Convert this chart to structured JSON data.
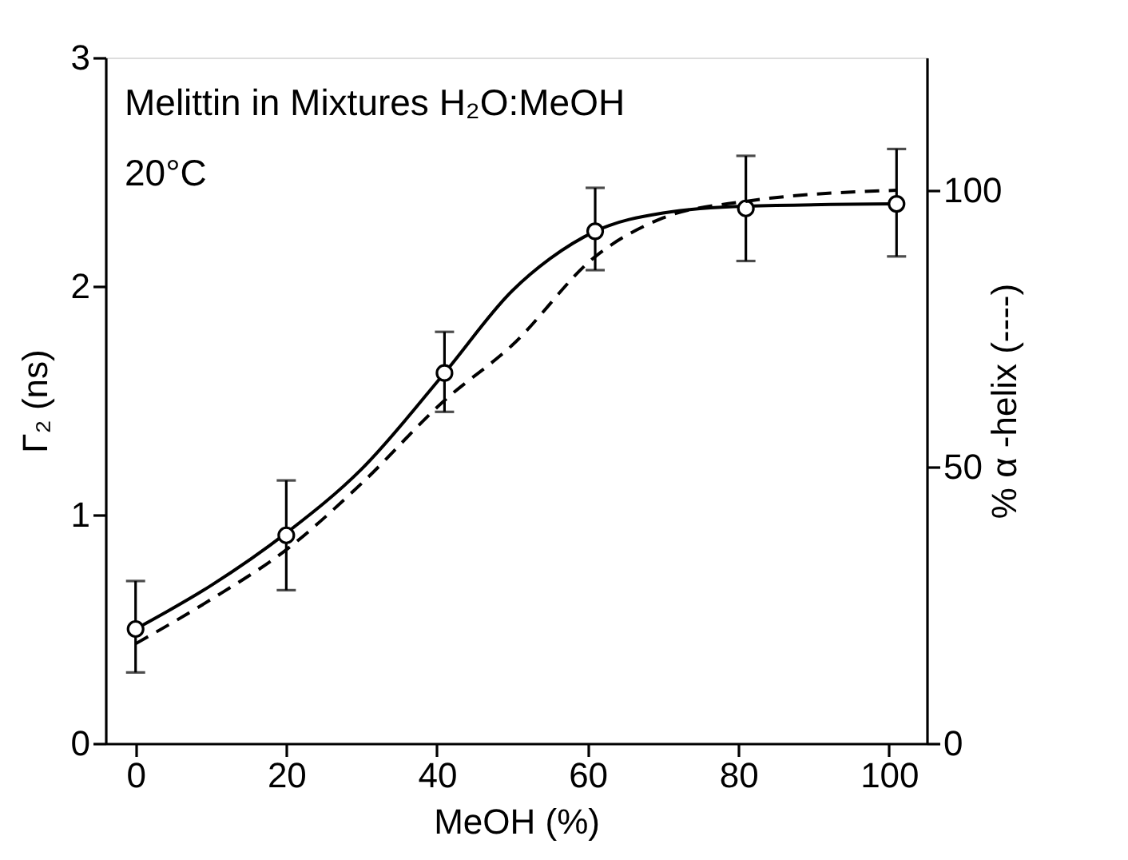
{
  "chart_data": {
    "type": "line",
    "xlabel": "MeOH (%)",
    "ylabel": "Γ₂ (ns)",
    "y2label": "% α -helix (----)",
    "annotations": [
      "Melittin in Mixtures H₂O:MeOH",
      "20°C"
    ],
    "xlim": [
      -4,
      105
    ],
    "xticks": [
      0,
      20,
      40,
      60,
      80,
      100
    ],
    "ylim": [
      0,
      3
    ],
    "yticks": [
      0,
      1,
      2,
      3
    ],
    "y2lim": [
      0,
      124
    ],
    "y2ticks": [
      0,
      50,
      100
    ],
    "series": [
      {
        "type": "scatter",
        "color": "#000000",
        "marker": "circle",
        "x": [
          0,
          20,
          41,
          61,
          81,
          101
        ],
        "values": [
          0.5,
          0.91,
          1.62,
          2.24,
          2.34,
          2.36
        ],
        "errors": [
          [
            0.31,
            0.71
          ],
          [
            0.67,
            1.15
          ],
          [
            1.45,
            1.8
          ],
          [
            2.07,
            2.43
          ],
          [
            2.11,
            2.57
          ],
          [
            2.13,
            2.6
          ]
        ]
      },
      {
        "type": "line",
        "color": "#000000",
        "line_style": "solid",
        "x": [
          0,
          10,
          20,
          30,
          41,
          50,
          55,
          61,
          70,
          81,
          101
        ],
        "values": [
          0.5,
          0.69,
          0.92,
          1.2,
          1.62,
          1.98,
          2.12,
          2.24,
          2.32,
          2.35,
          2.36
        ]
      },
      {
        "type": "line",
        "axis": "y2",
        "color": "#000000",
        "line_style": "dashed",
        "x": [
          0,
          10,
          20,
          30,
          41,
          50,
          61,
          70,
          81,
          101
        ],
        "values": [
          18,
          26,
          35,
          47,
          62,
          72,
          88,
          95,
          98,
          100
        ]
      }
    ]
  }
}
